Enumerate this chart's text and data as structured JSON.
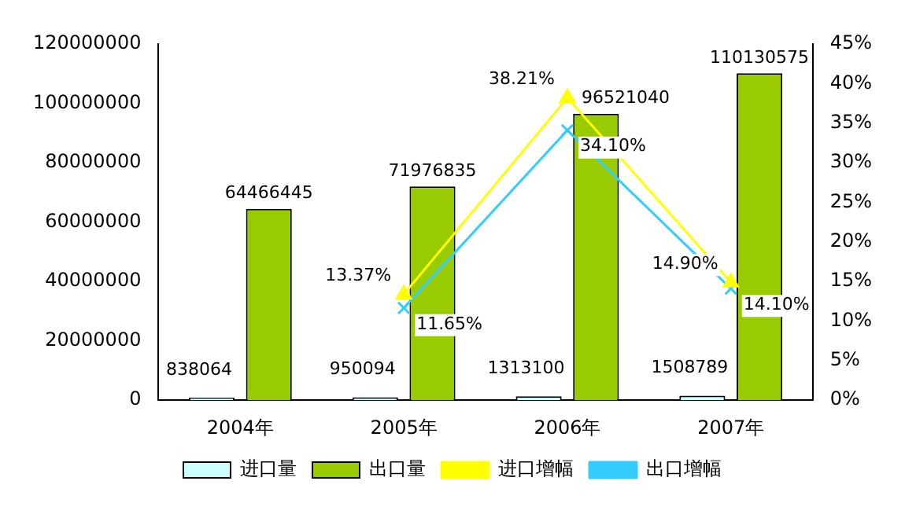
{
  "chart_data": {
    "type": "bar",
    "categories": [
      "2004年",
      "2005年",
      "2006年",
      "2007年"
    ],
    "series": [
      {
        "name": "进口量",
        "color": "#ccffff",
        "values": [
          838064,
          950094,
          1313100,
          1508789
        ],
        "value_labels": [
          "838064",
          "950094",
          "1313100",
          "1508789"
        ]
      },
      {
        "name": "出口量",
        "color": "#99cc00",
        "values": [
          64466445,
          71976835,
          96521040,
          110130575
        ],
        "value_labels": [
          "64466445",
          "71976835",
          "96521040",
          "110130575"
        ]
      },
      {
        "name": "进口增幅",
        "type": "line",
        "axis": "y2",
        "color": "#ffff00",
        "marker": "triangle",
        "values": [
          null,
          13.37,
          38.21,
          14.9
        ],
        "value_labels": [
          null,
          "13.37%",
          "38.21%",
          "14.90%"
        ]
      },
      {
        "name": "出口增幅",
        "type": "line",
        "axis": "y2",
        "color": "#33ccff",
        "marker": "cross",
        "values": [
          null,
          11.65,
          34.1,
          14.1
        ],
        "value_labels": [
          null,
          "11.65%",
          "34.10%",
          "14.10%"
        ]
      }
    ],
    "ylim": [
      0,
      120000000
    ],
    "yticks": [
      0,
      20000000,
      40000000,
      60000000,
      80000000,
      100000000,
      120000000
    ],
    "y2lim": [
      0,
      45
    ],
    "y2ticks": [
      {
        "value": 0,
        "label": "0%"
      },
      {
        "value": 5,
        "label": "5%"
      },
      {
        "value": 10,
        "label": "10%"
      },
      {
        "value": 15,
        "label": "15%"
      },
      {
        "value": 20,
        "label": "20%"
      },
      {
        "value": 25,
        "label": "25%"
      },
      {
        "value": 30,
        "label": "30%"
      },
      {
        "value": 35,
        "label": "35%"
      },
      {
        "value": 40,
        "label": "40%"
      },
      {
        "value": 45,
        "label": "45%"
      }
    ],
    "grid": false,
    "legend": "bottom"
  }
}
